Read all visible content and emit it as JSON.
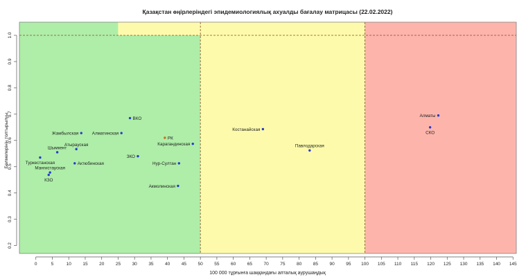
{
  "chart_data": {
    "type": "scatter",
    "title": "Қазақстан өңірлеріндегі эпидемиологиялық ахуалды бағалау матрицасы  (22.02.2022)",
    "xlabel": "100 000 тұрғынға шаққандағы апталық аурушаңдық",
    "ylabel": "Бөлмелерінің толтырылуы",
    "xlim": [
      -5,
      146
    ],
    "ylim": [
      0.17,
      1.05
    ],
    "x_ticks": [
      0,
      5,
      10,
      15,
      20,
      25,
      30,
      35,
      40,
      45,
      50,
      55,
      60,
      65,
      70,
      75,
      80,
      85,
      90,
      95,
      100,
      105,
      110,
      115,
      120,
      125,
      130,
      135,
      140,
      145
    ],
    "y_ticks": [
      0.2,
      0.3,
      0.4,
      0.5,
      0.6,
      0.7,
      0.8,
      0.9,
      1.0
    ],
    "zones": [
      {
        "x0": -5,
        "x1": 50,
        "y0": 0.17,
        "y1": 1.0,
        "color": "#aeeea8"
      },
      {
        "x0": -5,
        "x1": 25,
        "y0": 1.0,
        "y1": 1.05,
        "color": "#aeeea8"
      },
      {
        "x0": 25,
        "x1": 50,
        "y0": 1.0,
        "y1": 1.05,
        "color": "#fdfbab"
      },
      {
        "x0": 50,
        "x1": 100,
        "y0": 0.17,
        "y1": 1.05,
        "color": "#fdfbab"
      },
      {
        "x0": 100,
        "x1": 146,
        "y0": 0.17,
        "y1": 1.05,
        "color": "#fdb5ab"
      }
    ],
    "threshold_lines": {
      "x": [
        50,
        100
      ],
      "y": [
        1.0
      ],
      "color": "#8a4a2a"
    },
    "grid": false,
    "points": [
      {
        "label": "Туркестанская",
        "x": 1.3,
        "y": 0.535,
        "color": "#2a3acc",
        "label_pos": "below"
      },
      {
        "label": "Шымкент",
        "x": 6.5,
        "y": 0.555,
        "color": "#2a3acc",
        "label_pos": "above"
      },
      {
        "label": "Мангистауская",
        "x": 4.3,
        "y": 0.478,
        "color": "#2a3acc",
        "label_pos": "above"
      },
      {
        "label": "КЗО",
        "x": 3.9,
        "y": 0.469,
        "color": "#2a3acc",
        "label_pos": "below"
      },
      {
        "label": "Атырауская",
        "x": 12.3,
        "y": 0.567,
        "color": "#2a3acc",
        "label_pos": "above"
      },
      {
        "label": "Жамбылская",
        "x": 13.8,
        "y": 0.628,
        "color": "#2a3acc",
        "label_pos": "left"
      },
      {
        "label": "Актюбинская",
        "x": 11.8,
        "y": 0.513,
        "color": "#2a3acc",
        "label_pos": "right"
      },
      {
        "label": "Алматинская",
        "x": 26.0,
        "y": 0.628,
        "color": "#2a3acc",
        "label_pos": "left"
      },
      {
        "label": "ВКО",
        "x": 28.6,
        "y": 0.685,
        "color": "#2a3acc",
        "label_pos": "right"
      },
      {
        "label": "ЗКО",
        "x": 31.0,
        "y": 0.54,
        "color": "#2a3acc",
        "label_pos": "left"
      },
      {
        "label": "РК",
        "x": 39.2,
        "y": 0.61,
        "color": "#d2691e",
        "label_pos": "right"
      },
      {
        "label": "Карагандинская",
        "x": 47.7,
        "y": 0.587,
        "color": "#2a3acc",
        "label_pos": "left"
      },
      {
        "label": "Нур-Султан",
        "x": 43.5,
        "y": 0.513,
        "color": "#2a3acc",
        "label_pos": "left"
      },
      {
        "label": "Акмолинская",
        "x": 43.2,
        "y": 0.427,
        "color": "#2a3acc",
        "label_pos": "left"
      },
      {
        "label": "Костанайская",
        "x": 69.0,
        "y": 0.643,
        "color": "#2a3acc",
        "label_pos": "left"
      },
      {
        "label": "Павлодарская",
        "x": 83.2,
        "y": 0.562,
        "color": "#2a3acc",
        "label_pos": "above"
      },
      {
        "label": "Алматы",
        "x": 122.3,
        "y": 0.695,
        "color": "#2a3acc",
        "label_pos": "left"
      },
      {
        "label": "СКО",
        "x": 119.8,
        "y": 0.65,
        "color": "#2a3acc",
        "label_pos": "below"
      }
    ]
  }
}
